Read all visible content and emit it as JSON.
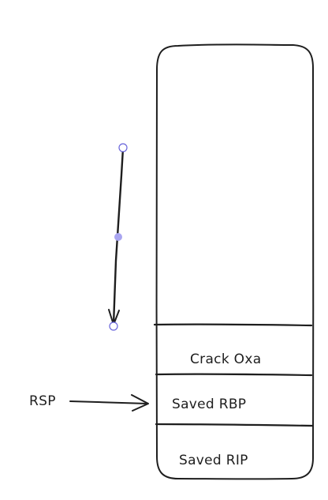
{
  "diagram": {
    "stack_cells": [
      {
        "label": "Crack Oxa"
      },
      {
        "label": "Saved RBP"
      },
      {
        "label": "Saved RIP"
      }
    ],
    "pointer": {
      "label": "RSP"
    },
    "colors": {
      "stroke": "#1e1e1e",
      "selection_handle": "#6965db",
      "selection_midpoint": "#a9a5f0",
      "background": "#ffffff"
    },
    "icons": [
      "arrow-icon",
      "selection-handle-icon"
    ]
  }
}
